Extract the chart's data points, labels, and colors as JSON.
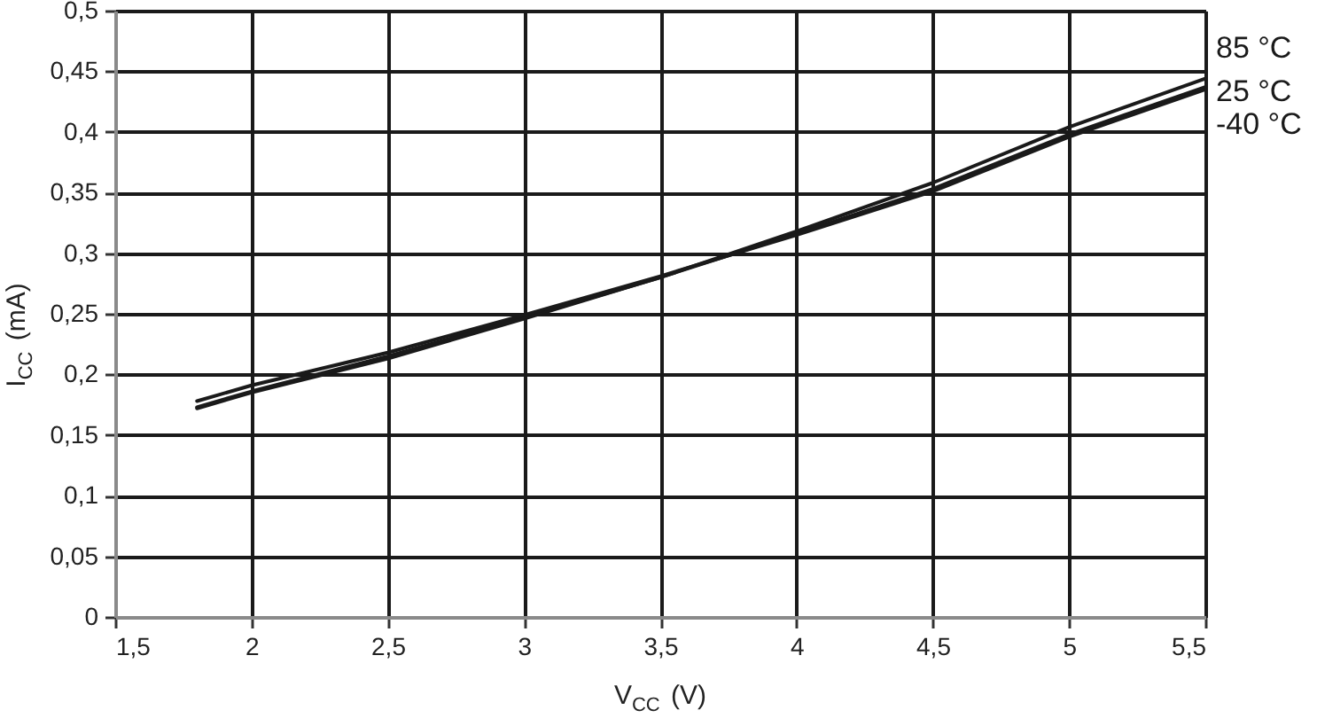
{
  "chart_data": {
    "type": "line",
    "xlabel": "V$_{CC}$ (V)",
    "ylabel": "I$_{CC}$ (mA)",
    "x": [
      1.8,
      2,
      2.5,
      3,
      3.5,
      4,
      4.5,
      5,
      5.5
    ],
    "series": [
      {
        "name": "85 °C",
        "color": "#1a1a1a",
        "values": [
          0.172,
          0.185,
          0.213,
          0.246,
          0.28,
          0.318,
          0.358,
          0.404,
          0.444
        ]
      },
      {
        "name": "25 °C",
        "color": "#1a1a1a",
        "values": [
          0.173,
          0.186,
          0.215,
          0.247,
          0.28,
          0.316,
          0.353,
          0.398,
          0.437
        ]
      },
      {
        "name": "-40 °C",
        "color": "#1a1a1a",
        "values": [
          0.178,
          0.191,
          0.218,
          0.249,
          0.281,
          0.315,
          0.351,
          0.396,
          0.435
        ]
      }
    ],
    "xlim": [
      1.5,
      5.5
    ],
    "xticks": [
      {
        "value": 1.5,
        "label": "1,5"
      },
      2,
      {
        "value": 2.5,
        "label": "2,5"
      },
      3,
      {
        "value": 3.5,
        "label": "3,5"
      },
      4,
      {
        "value": 4.5,
        "label": "4,5"
      },
      5,
      {
        "value": 5.5,
        "label": "5,5"
      }
    ],
    "ylim": [
      0,
      0.5
    ],
    "yticks": [
      0,
      {
        "value": 0.05,
        "label": "0,05"
      },
      {
        "value": 0.1,
        "label": "0,1"
      },
      {
        "value": 0.15,
        "label": "0,15"
      },
      {
        "value": 0.2,
        "label": "0,2"
      },
      {
        "value": 0.25,
        "label": "0,25"
      },
      {
        "value": 0.3,
        "label": "0,3"
      },
      {
        "value": 0.35,
        "label": "0,35"
      },
      {
        "value": 0.4,
        "label": "0,4"
      },
      {
        "value": 0.45,
        "label": "0,45"
      },
      {
        "value": 0.5,
        "label": "0,5"
      }
    ],
    "grid": true
  }
}
